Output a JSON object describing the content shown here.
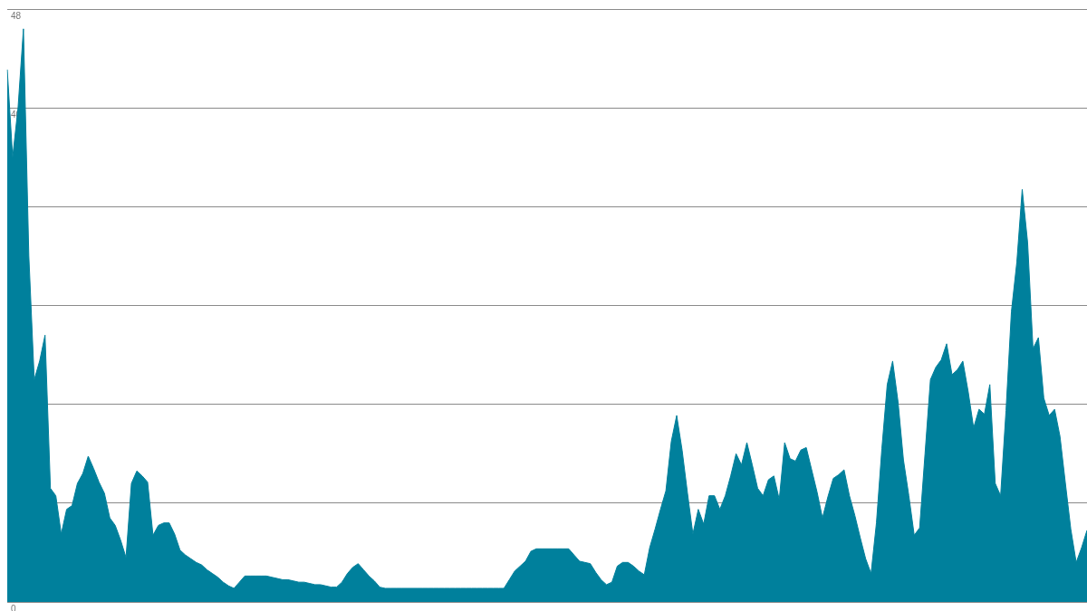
{
  "chart_data": {
    "type": "area",
    "color": "#00809c",
    "grid": true,
    "tick_labels": "y",
    "ylim": [
      0,
      48
    ],
    "yticks": [
      0,
      8,
      16,
      24,
      32,
      40,
      48
    ],
    "categories": [
      null,
      null,
      null,
      null,
      null,
      null,
      null,
      null,
      null,
      null,
      null,
      null,
      null,
      null,
      null,
      null,
      null,
      null,
      null,
      null,
      null,
      null,
      null,
      null,
      null,
      null,
      null,
      null,
      null,
      null,
      null,
      null,
      null,
      null,
      null,
      null,
      null,
      null,
      null,
      null,
      null,
      null,
      null,
      null,
      null,
      null,
      null,
      null,
      null,
      null,
      null,
      null,
      null,
      null,
      null,
      null,
      null,
      null,
      null,
      null,
      null,
      null,
      null,
      null,
      null,
      null,
      null,
      null,
      null,
      null,
      null,
      null,
      null,
      null,
      null,
      null,
      null,
      null,
      null,
      null,
      null,
      null,
      null,
      null,
      null,
      null,
      null,
      null,
      null,
      null,
      null,
      null,
      null,
      null,
      null,
      null,
      null,
      null,
      null,
      null,
      null,
      null,
      null,
      null,
      null,
      null,
      null,
      null,
      null,
      null,
      null,
      null,
      null,
      null,
      null,
      null,
      null,
      null,
      null,
      null,
      null,
      null,
      null,
      null,
      null,
      null,
      null,
      null,
      null,
      null,
      null,
      null,
      null,
      null,
      null,
      null,
      null,
      null,
      null,
      null,
      null,
      null,
      null,
      null,
      null,
      null,
      null,
      null,
      null,
      null,
      null,
      null,
      null,
      null,
      null,
      null,
      null,
      null,
      null,
      null,
      null,
      null,
      null,
      null,
      null,
      null,
      null,
      null,
      null,
      null,
      null,
      null,
      null,
      null,
      null,
      null,
      null,
      null,
      null,
      null,
      null,
      null,
      null,
      null,
      null,
      null,
      null,
      null,
      null,
      null,
      null,
      null,
      null,
      null,
      null,
      null,
      null,
      null,
      null,
      null,
      null
    ],
    "values": [
      43.1,
      36,
      40,
      46.4,
      28,
      18,
      19.5,
      21.6,
      9.2,
      8.6,
      5.5,
      7.5,
      7.8,
      9.6,
      10.4,
      11.8,
      10.8,
      9.7,
      8.8,
      6.8,
      6.2,
      5.0,
      3.6,
      9.6,
      10.6,
      10.2,
      9.7,
      5.4,
      6.2,
      6.4,
      6.4,
      5.5,
      4.2,
      3.8,
      3.5,
      3.2,
      3.0,
      2.6,
      2.3,
      2.0,
      1.6,
      1.3,
      1.1,
      1.6,
      2.1,
      2.1,
      2.1,
      2.1,
      2.1,
      2.0,
      1.9,
      1.8,
      1.8,
      1.7,
      1.6,
      1.6,
      1.5,
      1.4,
      1.4,
      1.3,
      1.2,
      1.2,
      1.6,
      2.3,
      2.8,
      3.1,
      2.6,
      2.1,
      1.7,
      1.2,
      1.1,
      1.1,
      1.1,
      1.1,
      1.1,
      1.1,
      1.1,
      1.1,
      1.1,
      1.1,
      1.1,
      1.1,
      1.1,
      1.1,
      1.1,
      1.1,
      1.1,
      1.1,
      1.1,
      1.1,
      1.1,
      1.1,
      1.1,
      1.8,
      2.5,
      2.9,
      3.3,
      4.1,
      4.3,
      4.3,
      4.3,
      4.3,
      4.3,
      4.3,
      4.3,
      3.8,
      3.3,
      3.2,
      3.1,
      2.4,
      1.8,
      1.4,
      1.6,
      2.9,
      3.2,
      3.2,
      2.9,
      2.5,
      2.2,
      4.4,
      5.9,
      7.5,
      9.0,
      13.0,
      15.1,
      12.3,
      8.8,
      5.5,
      7.5,
      6.3,
      8.6,
      8.6,
      7.5,
      8.6,
      10.2,
      12.0,
      11.1,
      12.9,
      11.1,
      9.2,
      8.6,
      9.9,
      10.2,
      8.3,
      12.9,
      11.6,
      11.4,
      12.3,
      12.5,
      10.7,
      8.9,
      6.8,
      8.5,
      10.0,
      10.3,
      10.7,
      8.6,
      7.0,
      5.2,
      3.5,
      2.3,
      6.4,
      12.4,
      17.6,
      19.5,
      16.2,
      11.5,
      8.6,
      5.4,
      6.0,
      12.0,
      18.0,
      19.0,
      19.6,
      20.9,
      18.4,
      18.8,
      19.5,
      17.0,
      14.1,
      15.6,
      15.2,
      17.6,
      9.6,
      8.6,
      15.5,
      23.5,
      27.5,
      33.4,
      29.1,
      20.5,
      21.4,
      16.5,
      15.1,
      15.6,
      13.4,
      9.6,
      5.9,
      3.2,
      4.4,
      5.8
    ]
  }
}
